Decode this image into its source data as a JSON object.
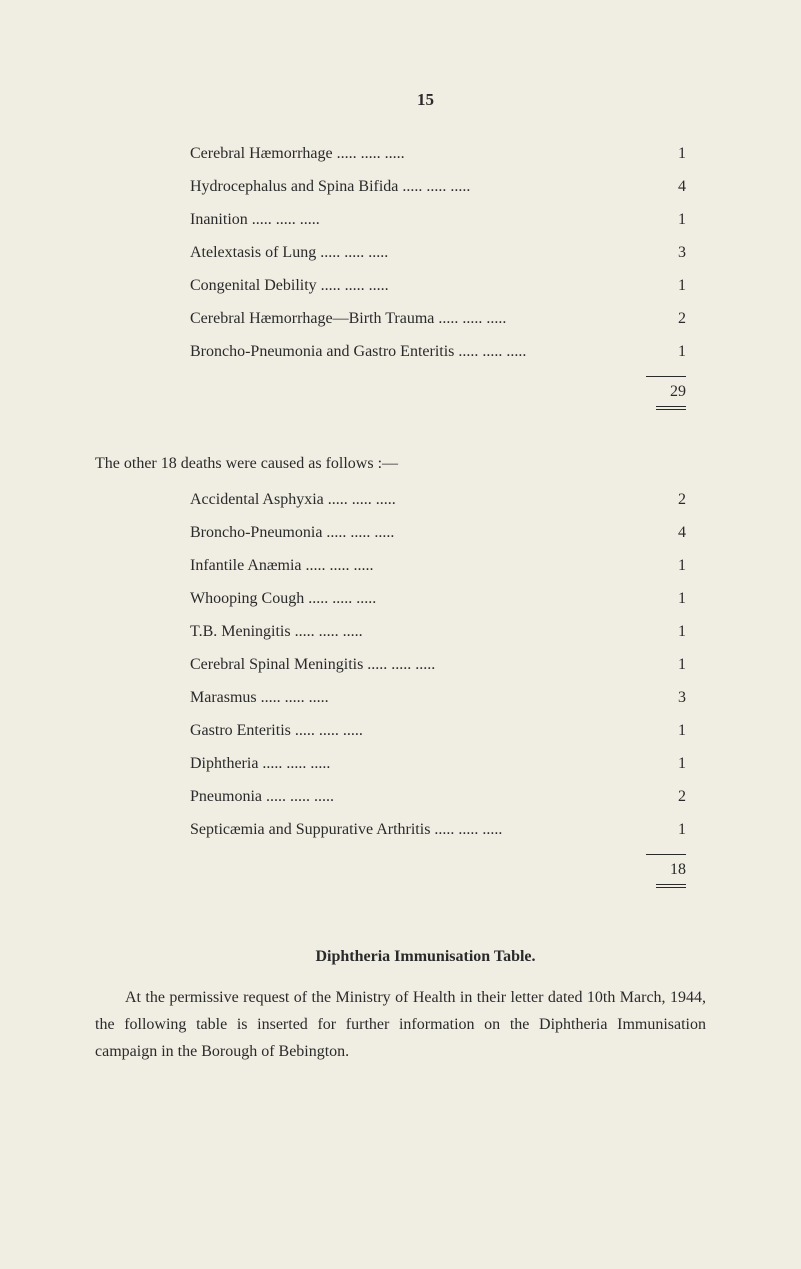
{
  "pageNumber": "15",
  "list1": {
    "rows": [
      {
        "label": "Cerebral Hæmorrhage",
        "value": "1"
      },
      {
        "label": "Hydrocephalus and Spina Bifida",
        "value": "4"
      },
      {
        "label": "Inanition",
        "value": "1"
      },
      {
        "label": "Atelextasis of Lung",
        "value": "3"
      },
      {
        "label": "Congenital Debility",
        "value": "1"
      },
      {
        "label": "Cerebral Hæmorrhage—Birth Trauma",
        "value": "2"
      },
      {
        "label": "Broncho-Pneumonia and Gastro Enteritis",
        "value": "1"
      }
    ],
    "total": "29"
  },
  "intro2": "The other 18 deaths were caused as follows :—",
  "list2": {
    "rows": [
      {
        "label": "Accidental Asphyxia",
        "value": "2"
      },
      {
        "label": "Broncho-Pneumonia",
        "value": "4"
      },
      {
        "label": "Infantile Anæmia",
        "value": "1"
      },
      {
        "label": "Whooping Cough",
        "value": "1"
      },
      {
        "label": "T.B. Meningitis",
        "value": "1"
      },
      {
        "label": "Cerebral Spinal Meningitis",
        "value": "1"
      },
      {
        "label": "Marasmus",
        "value": "3"
      },
      {
        "label": "Gastro Enteritis",
        "value": "1"
      },
      {
        "label": "Diphtheria",
        "value": "1"
      },
      {
        "label": "Pneumonia",
        "value": "2"
      },
      {
        "label": "Septicæmia and Suppurative Arthritis",
        "value": "1"
      }
    ],
    "total": "18"
  },
  "sectionTitle": "Diphtheria Immunisation Table.",
  "bodyText": "At the permissive request of the Ministry of Health in their letter dated 10th March, 1944, the following table is inserted for further information on the Diphtheria Immunisation campaign in the Borough of Bebington."
}
